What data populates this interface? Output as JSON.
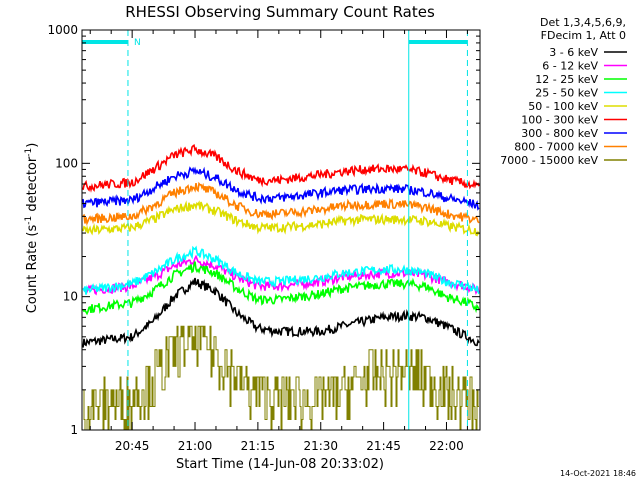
{
  "chart_data": {
    "type": "line",
    "title": "RHESSI Observing Summary Count Rates",
    "xlabel": "Start Time (14-Jun-08 20:33:02)",
    "ylabel_main": "Count Rate (s",
    "ylabel_sup1": "-1",
    "ylabel_mid": " detector",
    "ylabel_sup2": "-1",
    "ylabel_end": ")",
    "yscale": "log",
    "ylim": [
      1,
      1000
    ],
    "x_start_time": "20:33",
    "x_end_time": "22:08",
    "x_ticks": [
      "20:45",
      "21:00",
      "21:15",
      "21:30",
      "21:45",
      "22:00"
    ],
    "y_ticks": [
      "1",
      "10",
      "100",
      "1000"
    ],
    "grid": false,
    "legend_position": "top-right",
    "legend_header": [
      "Det 1,3,4,5,6,9,",
      "FDecim 1, Att 0"
    ],
    "timestamp": "14-Oct-2021 18:46",
    "night_marker": "N",
    "series": [
      {
        "name": "3 - 6 keV",
        "color": "#000000",
        "x": [
          "20:33",
          "20:45",
          "20:50",
          "20:55",
          "21:00",
          "21:05",
          "21:10",
          "21:15",
          "21:20",
          "21:30",
          "21:35",
          "21:40",
          "21:45",
          "21:50",
          "21:55",
          "22:00",
          "22:05",
          "22:08"
        ],
        "values": [
          4.5,
          5.0,
          6.5,
          10,
          13,
          11,
          7.5,
          5.8,
          5.5,
          5.5,
          6.0,
          6.5,
          7.0,
          7.2,
          7.0,
          6.0,
          5.0,
          4.5
        ]
      },
      {
        "name": "6 - 12 keV",
        "color": "#ff00ff",
        "x": [
          "20:33",
          "20:45",
          "20:50",
          "20:55",
          "21:00",
          "21:05",
          "21:10",
          "21:15",
          "21:20",
          "21:30",
          "21:35",
          "21:40",
          "21:45",
          "21:50",
          "21:55",
          "22:00",
          "22:05",
          "22:08"
        ],
        "values": [
          11,
          12,
          14,
          17,
          19,
          17,
          14,
          12,
          12,
          13,
          14,
          14.5,
          15,
          15,
          14.5,
          13,
          12,
          11
        ]
      },
      {
        "name": "12 - 25 keV",
        "color": "#00ff00",
        "x": [
          "20:33",
          "20:45",
          "20:50",
          "20:55",
          "21:00",
          "21:05",
          "21:10",
          "21:15",
          "21:20",
          "21:30",
          "21:35",
          "21:40",
          "21:45",
          "21:50",
          "21:55",
          "22:00",
          "22:05",
          "22:08"
        ],
        "values": [
          8,
          9,
          11,
          14.5,
          17,
          15,
          11.5,
          9.5,
          9.5,
          10.5,
          11.5,
          12,
          12.5,
          12.5,
          12,
          10,
          9,
          8
        ]
      },
      {
        "name": "25 - 50 keV",
        "color": "#00ffff",
        "x": [
          "20:33",
          "20:45",
          "20:50",
          "20:55",
          "21:00",
          "21:05",
          "21:10",
          "21:15",
          "21:20",
          "21:30",
          "21:35",
          "21:40",
          "21:45",
          "21:50",
          "21:55",
          "22:00",
          "22:05",
          "22:08"
        ],
        "values": [
          11,
          12.5,
          15,
          19,
          22,
          19,
          15,
          13,
          13,
          14,
          15,
          15.5,
          16,
          16,
          15,
          13,
          12,
          11
        ]
      },
      {
        "name": "50 - 100 keV",
        "color": "#dddd00",
        "x": [
          "20:33",
          "20:45",
          "20:50",
          "20:55",
          "21:00",
          "21:05",
          "21:10",
          "21:15",
          "21:20",
          "21:30",
          "21:35",
          "21:40",
          "21:45",
          "21:50",
          "21:55",
          "22:00",
          "22:05",
          "22:08"
        ],
        "values": [
          31,
          33,
          38,
          45,
          49,
          44,
          37,
          33,
          33,
          35,
          37,
          38,
          38,
          38,
          37,
          34,
          32,
          31
        ]
      },
      {
        "name": "100 - 300 keV",
        "color": "#ff0000",
        "x": [
          "20:33",
          "20:45",
          "20:50",
          "20:55",
          "21:00",
          "21:05",
          "21:10",
          "21:15",
          "21:20",
          "21:30",
          "21:35",
          "21:40",
          "21:45",
          "21:50",
          "21:55",
          "22:00",
          "22:05",
          "22:08"
        ],
        "values": [
          67,
          72,
          90,
          115,
          128,
          112,
          88,
          75,
          75,
          82,
          87,
          90,
          91,
          90,
          85,
          76,
          70,
          66
        ]
      },
      {
        "name": "300 - 800 keV",
        "color": "#0000ff",
        "x": [
          "20:33",
          "20:45",
          "20:50",
          "20:55",
          "21:00",
          "21:05",
          "21:10",
          "21:15",
          "21:20",
          "21:30",
          "21:35",
          "21:40",
          "21:45",
          "21:50",
          "21:55",
          "22:00",
          "22:05",
          "22:08"
        ],
        "values": [
          50,
          53,
          65,
          80,
          88,
          78,
          63,
          55,
          55,
          60,
          63,
          64,
          65,
          64,
          61,
          55,
          51,
          48
        ]
      },
      {
        "name": "800 - 7000 keV",
        "color": "#ff8000",
        "x": [
          "20:33",
          "20:45",
          "20:50",
          "20:55",
          "21:00",
          "21:05",
          "21:10",
          "21:15",
          "21:20",
          "21:30",
          "21:35",
          "21:40",
          "21:45",
          "21:50",
          "21:55",
          "22:00",
          "22:05",
          "22:08"
        ],
        "values": [
          38,
          40,
          48,
          60,
          68,
          60,
          48,
          42,
          42,
          45,
          48,
          49,
          50,
          49,
          47,
          42,
          39,
          37
        ]
      },
      {
        "name": "7000 - 15000 keV",
        "color": "#808000",
        "x": [
          "20:33",
          "20:45",
          "20:50",
          "20:55",
          "21:00",
          "21:05",
          "21:10",
          "21:15",
          "21:20",
          "21:30",
          "21:35",
          "21:40",
          "21:45",
          "21:50",
          "21:55",
          "22:00",
          "22:05",
          "22:08"
        ],
        "values": [
          1.5,
          1.8,
          2.5,
          4,
          5,
          4,
          2.5,
          2,
          1.8,
          1.8,
          2,
          2.5,
          2.8,
          2.8,
          2.5,
          2,
          1.8,
          1.5
        ]
      }
    ],
    "night_markers": [
      {
        "start": "20:33",
        "end": "20:44",
        "labeled": true
      },
      {
        "start": "21:51",
        "end": "22:05",
        "labeled": false
      }
    ]
  }
}
